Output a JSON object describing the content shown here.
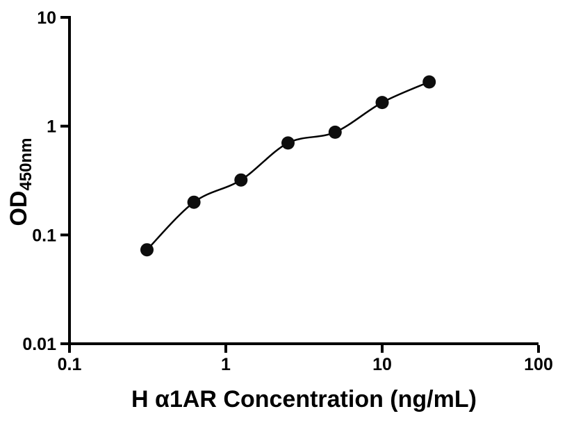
{
  "chart_data": {
    "type": "scatter",
    "title": "",
    "xlabel": "H α1AR Concentration (ng/mL)",
    "ylabel_main": "OD",
    "ylabel_sub": "450nm",
    "x_scale": "log10",
    "y_scale": "log10",
    "xlim": [
      0.1,
      100
    ],
    "ylim": [
      0.01,
      10
    ],
    "x_ticks": [
      {
        "value": 0.1,
        "label": "0.1"
      },
      {
        "value": 1,
        "label": "1"
      },
      {
        "value": 10,
        "label": "10"
      },
      {
        "value": 100,
        "label": "100"
      }
    ],
    "y_ticks": [
      {
        "value": 0.01,
        "label": "0.01"
      },
      {
        "value": 0.1,
        "label": "0.1"
      },
      {
        "value": 1,
        "label": "1"
      },
      {
        "value": 10,
        "label": "10"
      }
    ],
    "grid": false,
    "legend": "none",
    "x": [
      0.313,
      0.625,
      1.25,
      2.5,
      5,
      10,
      20
    ],
    "y": [
      0.073,
      0.2,
      0.32,
      0.7,
      0.88,
      1.65,
      2.55
    ],
    "fit_line": true,
    "marker": {
      "shape": "circle",
      "radius_px": 9.5
    }
  },
  "colors": {
    "background": "#ffffff",
    "axis": "#000000",
    "marker": "#0d0d0d",
    "curve": "#000000",
    "text": "#000000"
  }
}
